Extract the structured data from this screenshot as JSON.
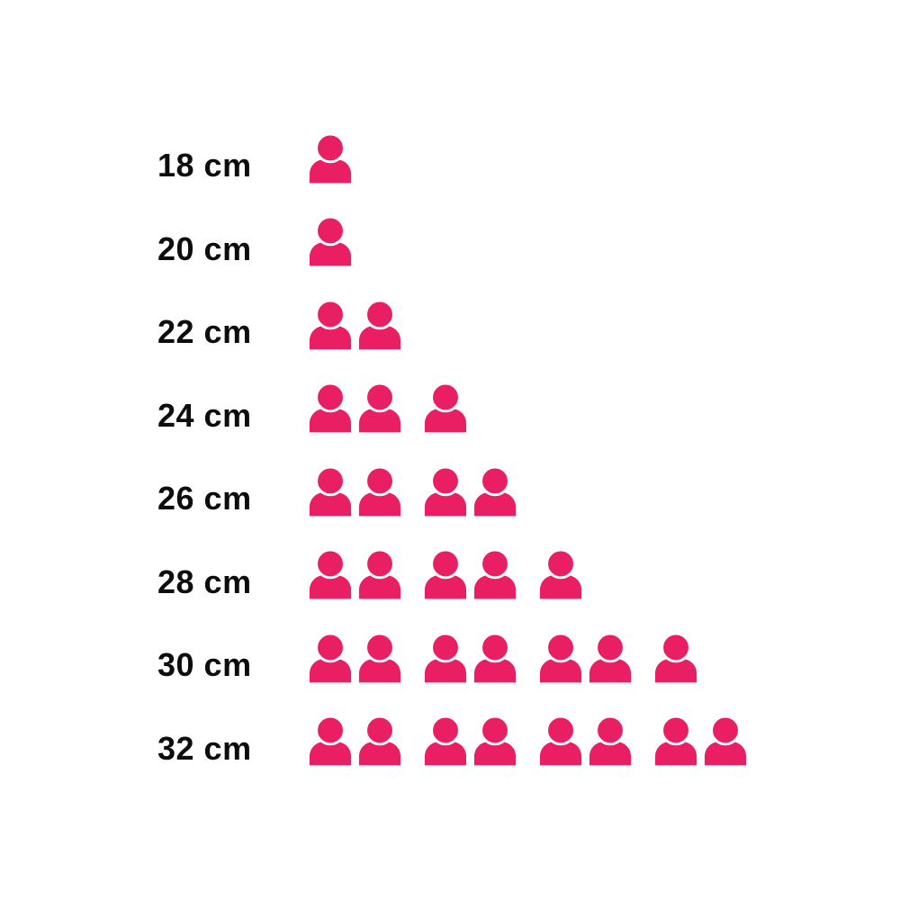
{
  "chart_data": {
    "type": "pictogram",
    "categories": [
      "18 cm",
      "20 cm",
      "22 cm",
      "24 cm",
      "26 cm",
      "28 cm",
      "30 cm",
      "32 cm"
    ],
    "values": [
      1,
      1,
      2,
      3,
      4,
      5,
      7,
      8
    ],
    "icon": "person-icon",
    "icon_value": 1,
    "group_size": 2,
    "legend": "none",
    "grid": false,
    "colors": {
      "icon": "#E91E63",
      "label": "#0d0d0d",
      "background": "#FFFFFF"
    }
  }
}
